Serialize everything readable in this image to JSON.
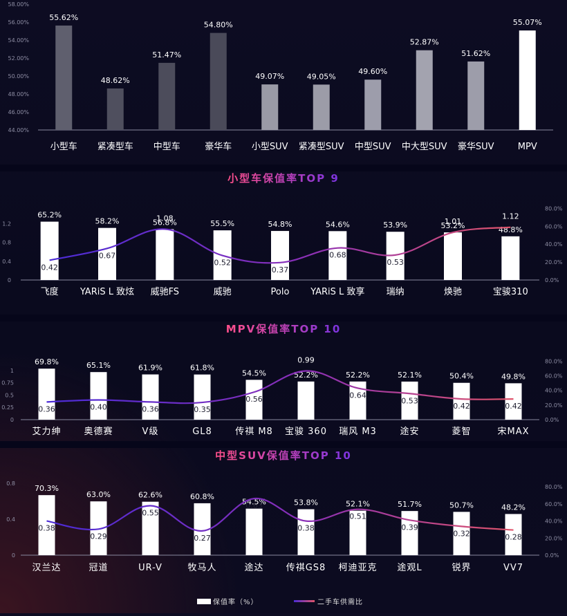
{
  "legend": {
    "bar_label": "保值率（%）",
    "line_label": "二手车供需比"
  },
  "colors": {
    "line_start": "#4b2bd6",
    "line_end": "#e0546b",
    "bar": "#ffffff"
  },
  "chart_data": [
    {
      "type": "bar",
      "title": "",
      "categories": [
        "小型车",
        "紧凑型车",
        "中型车",
        "豪华车",
        "小型SUV",
        "紧凑型SUV",
        "中型SUV",
        "中大型SUV",
        "豪华SUV",
        "MPV"
      ],
      "values": [
        55.62,
        48.62,
        51.47,
        54.8,
        49.07,
        49.05,
        49.6,
        52.87,
        51.62,
        55.07
      ],
      "value_labels": [
        "55.62%",
        "48.62%",
        "51.47%",
        "54.80%",
        "49.07%",
        "49.05%",
        "49.60%",
        "52.87%",
        "51.62%",
        "55.07%"
      ],
      "y_ticks": [
        "44.00%",
        "46.00%",
        "48.00%",
        "50.00%",
        "52.00%",
        "54.00%",
        "56.00%",
        "58.00%"
      ],
      "ylim": [
        44,
        58
      ],
      "bar_colors": [
        "#5f5f6e",
        "#4f4f5e",
        "#4c4c5b",
        "#4a4a59",
        "#9a9aa6",
        "#9c9ca8",
        "#9d9dab",
        "#a3a3af",
        "#9d9daa",
        "#ffffff"
      ]
    },
    {
      "type": "bar+line",
      "title": "小型车保值率TOP 9",
      "categories": [
        "飞度",
        "YARiS L 致炫",
        "威驰FS",
        "威驰",
        "Polo",
        "YARiS L 致享",
        "瑞纳",
        "焕驰",
        "宝骏310"
      ],
      "series": [
        {
          "name": "保值率（%）",
          "values": [
            65.2,
            58.2,
            56.8,
            55.5,
            54.8,
            54.6,
            53.9,
            53.2,
            48.8
          ],
          "labels": [
            "65.2%",
            "58.2%",
            "56.8%",
            "55.5%",
            "54.8%",
            "54.6%",
            "53.9%",
            "53.2%",
            "48.8%"
          ]
        },
        {
          "name": "二手车供需比",
          "values": [
            0.42,
            0.67,
            1.08,
            0.52,
            0.37,
            0.68,
            0.53,
            1.01,
            1.12
          ],
          "labels": [
            "0.42",
            "0.67",
            "1.08",
            "0.52",
            "0.37",
            "0.68",
            "0.53",
            "1.01",
            "1.12"
          ]
        }
      ],
      "left_ticks": [
        "0",
        "0.4",
        "0.8",
        "1.2"
      ],
      "left_max": 1.6,
      "right_ticks": [
        "0.0%",
        "20.0%",
        "40.0%",
        "60.0%",
        "80.0%"
      ],
      "right_max": 80,
      "line_label_above": [
        false,
        false,
        true,
        false,
        false,
        false,
        false,
        true,
        true
      ]
    },
    {
      "type": "bar+line",
      "title": "MPV保值率TOP 10",
      "categories": [
        "艾力绅",
        "奥德赛",
        "V级",
        "GL8",
        "传祺 M8",
        "宝骏 360",
        "瑞风 M3",
        "途安",
        "菱智",
        "宋MAX"
      ],
      "series": [
        {
          "name": "保值率（%）",
          "values": [
            69.8,
            65.1,
            61.9,
            61.8,
            54.5,
            52.2,
            52.2,
            52.1,
            50.4,
            49.8
          ],
          "labels": [
            "69.8%",
            "65.1%",
            "61.9%",
            "61.8%",
            "54.5%",
            "52.2%",
            "52.2%",
            "52.1%",
            "50.4%",
            "49.8%"
          ]
        },
        {
          "name": "二手车供需比",
          "values": [
            0.36,
            0.4,
            0.36,
            0.35,
            0.56,
            0.99,
            0.64,
            0.53,
            0.42,
            0.42
          ],
          "labels": [
            "0.36",
            "0.40",
            "0.36",
            "0.35",
            "0.56",
            "0.99",
            "0.64",
            "0.53",
            "0.42",
            "0.42"
          ]
        }
      ],
      "left_ticks": [
        "0",
        "0.25",
        "0.5",
        "0.75",
        "1"
      ],
      "left_max": 1.25,
      "right_ticks": [
        "0.0%",
        "20.0%",
        "40.0%",
        "60.0%",
        "80.0%"
      ],
      "right_max": 80,
      "line_label_above": [
        false,
        false,
        false,
        false,
        false,
        true,
        false,
        false,
        false,
        false
      ]
    },
    {
      "type": "bar+line",
      "title": "中型SUV保值率TOP 10",
      "categories": [
        "汉兰达",
        "冠道",
        "UR-V",
        "牧马人",
        "途达",
        "传祺GS8",
        "柯迪亚克",
        "途观L",
        "锐界",
        "VV7"
      ],
      "series": [
        {
          "name": "保值率（%）",
          "values": [
            70.3,
            63.0,
            62.6,
            60.8,
            54.5,
            53.8,
            52.1,
            51.7,
            50.7,
            48.2
          ],
          "labels": [
            "70.3%",
            "63.0%",
            "62.6%",
            "60.8%",
            "54.5%",
            "53.8%",
            "52.1%",
            "51.7%",
            "50.7%",
            "48.2%"
          ]
        },
        {
          "name": "二手车供需比",
          "values": [
            0.38,
            0.29,
            0.55,
            0.27,
            0.63,
            0.38,
            0.51,
            0.39,
            0.32,
            0.28
          ],
          "labels": [
            "0.38",
            "0.29",
            "0.55",
            "0.27",
            "0.63",
            "0.38",
            "0.51",
            "0.39",
            "0.32",
            "0.28"
          ]
        }
      ],
      "left_ticks": [
        "0",
        "0.4",
        "0.8"
      ],
      "left_max": 0.8,
      "right_ticks": [
        "0.0%",
        "20.0%",
        "40.0%",
        "60.0%",
        "80.0%"
      ],
      "right_max": 80,
      "line_label_above": [
        false,
        false,
        false,
        false,
        false,
        false,
        false,
        false,
        false,
        false
      ]
    }
  ]
}
